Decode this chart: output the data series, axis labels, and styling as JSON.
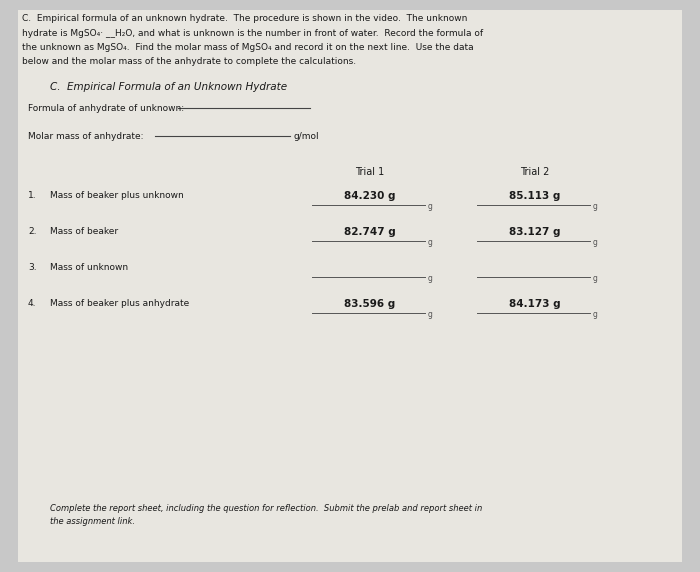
{
  "bg_color": "#c8c8c8",
  "paper_color": "#e8e6e0",
  "header_lines": [
    "C.  Empirical formula of an unknown hydrate.  The procedure is shown in the video.  The unknown",
    "hydrate is MgSO₄· __H₂O, and what is unknown is the number in front of water.  Record the formula of",
    "the unknown as MgSO₄.  Find the molar mass of MgSO₄ and record it on the next line.  Use the data",
    "below and the molar mass of the anhydrate to complete the calculations."
  ],
  "section_title": "C.  Empirical Formula of an Unknown Hydrate",
  "formula_label": "Formula of anhydrate of unknown: ",
  "molar_mass_label": "Molar mass of anhydrate:",
  "molar_mass_unit": "g/mol",
  "trial1_label": "Trial 1",
  "trial2_label": "Trial 2",
  "rows": [
    {
      "num": "1.",
      "desc": "Mass of beaker plus unknown",
      "t1_val": "84.230 g",
      "t2_val": "85.113 g"
    },
    {
      "num": "2.",
      "desc": "Mass of beaker",
      "t1_val": "82.747 g",
      "t2_val": "83.127 g"
    },
    {
      "num": "3.",
      "desc": "Mass of unknown",
      "t1_val": "",
      "t2_val": ""
    },
    {
      "num": "4.",
      "desc": "Mass of beaker plus anhydrate",
      "t1_val": "83.596 g",
      "t2_val": "84.173 g"
    }
  ],
  "footer_lines": [
    "Complete the report sheet, including the question for reflection.  Submit the prelab and report sheet in",
    "the assignment link."
  ],
  "header_fontsize": 6.5,
  "section_fontsize": 7.5,
  "body_fontsize": 6.5,
  "value_fontsize": 7.5,
  "footer_fontsize": 6.0
}
